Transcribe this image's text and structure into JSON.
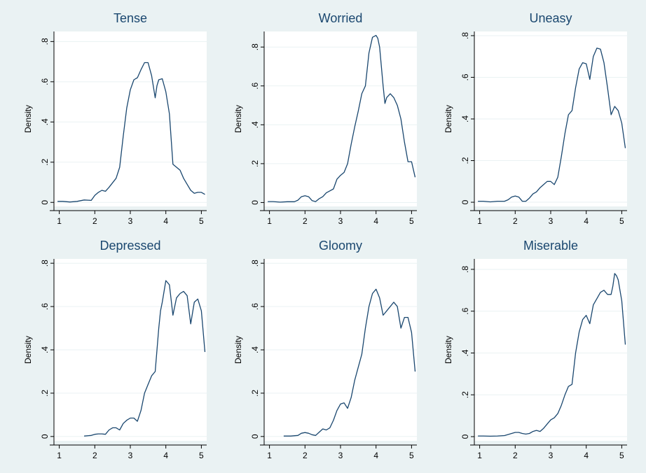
{
  "figure": {
    "background": "#eaf2f3",
    "panel_background": "#ffffff",
    "title_color": "#1a476f",
    "line_color": "#1a476f"
  },
  "chart_data": [
    {
      "type": "line",
      "title": "Tense",
      "xlabel": "",
      "ylabel": "Density",
      "xlim": [
        0.85,
        5.15
      ],
      "ylim": [
        -0.02,
        0.85
      ],
      "xticks": [
        1,
        2,
        3,
        4,
        5
      ],
      "yticks": [
        0,
        0.2,
        0.4,
        0.6,
        0.8
      ],
      "ytick_labels": [
        "0",
        ".2",
        ".4",
        ".6",
        ".8"
      ],
      "grid": true,
      "x": [
        0.95,
        1.1,
        1.3,
        1.5,
        1.7,
        1.9,
        2.0,
        2.1,
        2.2,
        2.3,
        2.4,
        2.6,
        2.7,
        2.8,
        2.9,
        3.0,
        3.1,
        3.15,
        3.2,
        3.3,
        3.4,
        3.5,
        3.6,
        3.7,
        3.75,
        3.8,
        3.9,
        4.0,
        4.1,
        4.2,
        4.3,
        4.4,
        4.5,
        4.6,
        4.7,
        4.8,
        4.9,
        5.0,
        5.1
      ],
      "y": [
        0.005,
        0.005,
        0.002,
        0.005,
        0.012,
        0.01,
        0.035,
        0.05,
        0.06,
        0.055,
        0.075,
        0.12,
        0.175,
        0.33,
        0.47,
        0.56,
        0.61,
        0.615,
        0.62,
        0.66,
        0.695,
        0.695,
        0.63,
        0.52,
        0.58,
        0.61,
        0.615,
        0.55,
        0.44,
        0.19,
        0.175,
        0.16,
        0.12,
        0.09,
        0.06,
        0.045,
        0.05,
        0.05,
        0.04
      ]
    },
    {
      "type": "line",
      "title": "Worried",
      "xlabel": "",
      "ylabel": "Density",
      "xlim": [
        0.85,
        5.15
      ],
      "ylim": [
        -0.02,
        0.88
      ],
      "xticks": [
        1,
        2,
        3,
        4,
        5
      ],
      "yticks": [
        0,
        0.2,
        0.4,
        0.6,
        0.8
      ],
      "ytick_labels": [
        "0",
        ".2",
        ".4",
        ".6",
        ".8"
      ],
      "grid": true,
      "x": [
        0.95,
        1.1,
        1.3,
        1.5,
        1.7,
        1.8,
        1.9,
        2.0,
        2.1,
        2.2,
        2.3,
        2.4,
        2.5,
        2.6,
        2.7,
        2.8,
        2.9,
        3.0,
        3.1,
        3.2,
        3.3,
        3.4,
        3.5,
        3.6,
        3.7,
        3.8,
        3.9,
        4.0,
        4.05,
        4.1,
        4.2,
        4.25,
        4.3,
        4.4,
        4.5,
        4.6,
        4.7,
        4.8,
        4.9,
        5.0,
        5.1
      ],
      "y": [
        0.005,
        0.005,
        0.002,
        0.004,
        0.004,
        0.012,
        0.03,
        0.035,
        0.03,
        0.01,
        0.005,
        0.02,
        0.03,
        0.05,
        0.06,
        0.07,
        0.12,
        0.14,
        0.155,
        0.2,
        0.3,
        0.39,
        0.47,
        0.56,
        0.6,
        0.77,
        0.85,
        0.86,
        0.845,
        0.8,
        0.6,
        0.51,
        0.54,
        0.56,
        0.54,
        0.5,
        0.43,
        0.31,
        0.21,
        0.21,
        0.13
      ]
    },
    {
      "type": "line",
      "title": "Uneasy",
      "xlabel": "",
      "ylabel": "Density",
      "xlim": [
        0.85,
        5.15
      ],
      "ylim": [
        -0.02,
        0.82
      ],
      "xticks": [
        1,
        2,
        3,
        4,
        5
      ],
      "yticks": [
        0,
        0.2,
        0.4,
        0.6,
        0.8
      ],
      "ytick_labels": [
        "0",
        ".2",
        ".4",
        ".6",
        ".8"
      ],
      "grid": true,
      "x": [
        0.95,
        1.1,
        1.3,
        1.5,
        1.7,
        1.8,
        1.9,
        2.0,
        2.1,
        2.2,
        2.3,
        2.4,
        2.5,
        2.6,
        2.7,
        2.8,
        2.9,
        3.0,
        3.1,
        3.2,
        3.3,
        3.4,
        3.5,
        3.6,
        3.7,
        3.8,
        3.9,
        4.0,
        4.1,
        4.2,
        4.3,
        4.4,
        4.5,
        4.6,
        4.7,
        4.8,
        4.9,
        5.0,
        5.1
      ],
      "y": [
        0.005,
        0.005,
        0.002,
        0.005,
        0.005,
        0.012,
        0.025,
        0.03,
        0.025,
        0.005,
        0.005,
        0.02,
        0.04,
        0.05,
        0.07,
        0.085,
        0.1,
        0.1,
        0.085,
        0.12,
        0.22,
        0.33,
        0.42,
        0.44,
        0.55,
        0.64,
        0.67,
        0.665,
        0.59,
        0.7,
        0.74,
        0.735,
        0.67,
        0.55,
        0.42,
        0.46,
        0.44,
        0.38,
        0.26
      ]
    },
    {
      "type": "line",
      "title": "Depressed",
      "xlabel": "",
      "ylabel": "Density",
      "xlim": [
        0.85,
        5.15
      ],
      "ylim": [
        -0.02,
        0.82
      ],
      "xticks": [
        1,
        2,
        3,
        4,
        5
      ],
      "yticks": [
        0,
        0.2,
        0.4,
        0.6,
        0.8
      ],
      "ytick_labels": [
        "0",
        ".2",
        ".4",
        ".6",
        ".8"
      ],
      "grid": true,
      "x": [
        1.7,
        1.9,
        2.0,
        2.1,
        2.2,
        2.3,
        2.4,
        2.5,
        2.6,
        2.7,
        2.8,
        2.9,
        3.0,
        3.1,
        3.2,
        3.3,
        3.4,
        3.5,
        3.6,
        3.7,
        3.8,
        3.85,
        3.9,
        4.0,
        4.1,
        4.2,
        4.3,
        4.4,
        4.5,
        4.6,
        4.7,
        4.8,
        4.9,
        5.0,
        5.1
      ],
      "y": [
        0.002,
        0.005,
        0.01,
        0.012,
        0.012,
        0.01,
        0.03,
        0.04,
        0.04,
        0.03,
        0.06,
        0.075,
        0.085,
        0.085,
        0.07,
        0.12,
        0.2,
        0.24,
        0.28,
        0.3,
        0.5,
        0.58,
        0.62,
        0.72,
        0.7,
        0.56,
        0.64,
        0.66,
        0.67,
        0.65,
        0.52,
        0.62,
        0.635,
        0.58,
        0.39
      ]
    },
    {
      "type": "line",
      "title": "Gloomy",
      "xlabel": "",
      "ylabel": "Density",
      "xlim": [
        0.85,
        5.15
      ],
      "ylim": [
        -0.02,
        0.82
      ],
      "xticks": [
        1,
        2,
        3,
        4,
        5
      ],
      "yticks": [
        0,
        0.2,
        0.4,
        0.6,
        0.8
      ],
      "ytick_labels": [
        "0",
        ".2",
        ".4",
        ".6",
        ".8"
      ],
      "grid": true,
      "x": [
        1.4,
        1.6,
        1.8,
        1.9,
        2.0,
        2.1,
        2.2,
        2.3,
        2.4,
        2.5,
        2.6,
        2.7,
        2.8,
        2.9,
        3.0,
        3.1,
        3.2,
        3.3,
        3.4,
        3.5,
        3.6,
        3.7,
        3.8,
        3.9,
        4.0,
        4.1,
        4.2,
        4.3,
        4.4,
        4.5,
        4.6,
        4.7,
        4.8,
        4.9,
        5.0,
        5.1
      ],
      "y": [
        0.002,
        0.002,
        0.005,
        0.015,
        0.018,
        0.015,
        0.008,
        0.005,
        0.02,
        0.035,
        0.03,
        0.04,
        0.075,
        0.12,
        0.15,
        0.155,
        0.13,
        0.18,
        0.26,
        0.32,
        0.38,
        0.5,
        0.6,
        0.66,
        0.68,
        0.64,
        0.56,
        0.58,
        0.6,
        0.62,
        0.6,
        0.5,
        0.55,
        0.55,
        0.48,
        0.3
      ]
    },
    {
      "type": "line",
      "title": "Miserable",
      "xlabel": "",
      "ylabel": "Density",
      "xlim": [
        0.85,
        5.15
      ],
      "ylim": [
        -0.02,
        0.85
      ],
      "xticks": [
        1,
        2,
        3,
        4,
        5
      ],
      "yticks": [
        0,
        0.2,
        0.4,
        0.6,
        0.8
      ],
      "ytick_labels": [
        "0",
        ".2",
        ".4",
        ".6",
        ".8"
      ],
      "grid": true,
      "x": [
        0.95,
        1.1,
        1.3,
        1.5,
        1.7,
        1.8,
        1.9,
        2.0,
        2.1,
        2.2,
        2.3,
        2.4,
        2.5,
        2.6,
        2.7,
        2.8,
        2.9,
        3.0,
        3.1,
        3.2,
        3.3,
        3.4,
        3.5,
        3.6,
        3.7,
        3.8,
        3.9,
        4.0,
        4.1,
        4.2,
        4.3,
        4.4,
        4.5,
        4.6,
        4.7,
        4.75,
        4.8,
        4.85,
        4.9,
        5.0,
        5.1
      ],
      "y": [
        0.003,
        0.003,
        0.002,
        0.003,
        0.005,
        0.01,
        0.015,
        0.02,
        0.02,
        0.015,
        0.012,
        0.015,
        0.025,
        0.03,
        0.025,
        0.04,
        0.06,
        0.08,
        0.09,
        0.11,
        0.15,
        0.2,
        0.24,
        0.25,
        0.4,
        0.5,
        0.56,
        0.58,
        0.54,
        0.63,
        0.66,
        0.69,
        0.7,
        0.68,
        0.68,
        0.72,
        0.78,
        0.77,
        0.75,
        0.65,
        0.44
      ]
    }
  ]
}
